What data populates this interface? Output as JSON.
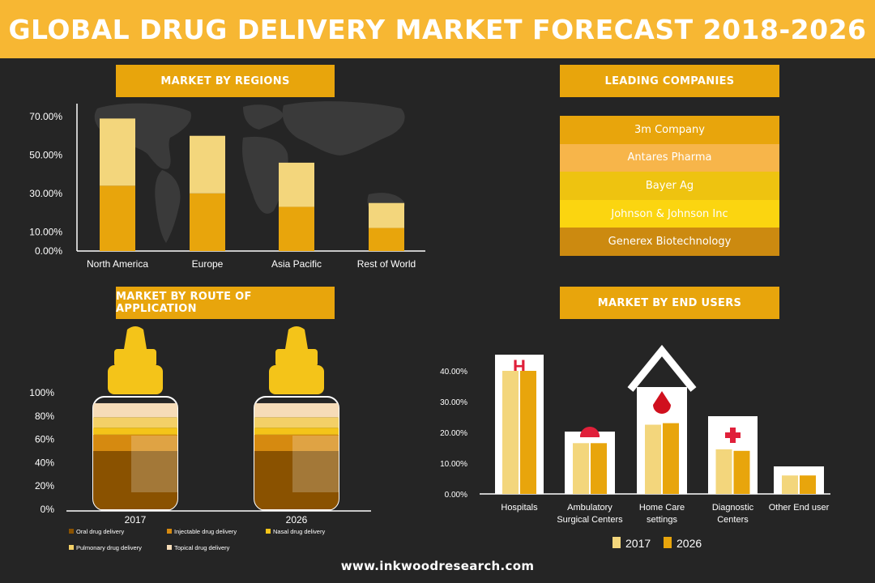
{
  "page": {
    "title": "GLOBAL DRUG DELIVERY MARKET FORECAST 2018-2026",
    "footer": "www.inkwoodresearch.com"
  },
  "sections": {
    "regions": "MARKET BY REGIONS",
    "companies": "LEADING COMPANIES",
    "route": "MARKET BY ROUTE OF APPLICATION",
    "end_users": "MARKET BY END USERS"
  },
  "companies": [
    {
      "name": "3m Company",
      "color": "#e8a50c"
    },
    {
      "name": "Antares Pharma",
      "color": "#f7b54a"
    },
    {
      "name": "Bayer Ag",
      "color": "#eec310"
    },
    {
      "name": "Johnson & Johnson Inc",
      "color": "#fbd510"
    },
    {
      "name": "Generex Biotechnology",
      "color": "#cc8a10"
    }
  ],
  "colors": {
    "accent": "#e8a50c",
    "banner": "#f7b733",
    "light": "#f3d67c",
    "dark_bg": "#252525"
  },
  "chart_data": [
    {
      "type": "bar",
      "stacked": true,
      "categories": [
        "North America",
        "Europe",
        "Asia Pacific",
        "Rest of World"
      ],
      "y_ticks": [
        "70.00%",
        "50.00%",
        "30.00%",
        "10.00%",
        "0.00%"
      ],
      "y_tick_values": [
        70,
        50,
        30,
        10,
        0
      ],
      "ylim": [
        0,
        70
      ],
      "series": [
        {
          "values": [
            34,
            30,
            23,
            12
          ],
          "color": "#e8a50c"
        },
        {
          "values": [
            35,
            30,
            23,
            13
          ],
          "color": "#f3d67c"
        }
      ],
      "grid": false,
      "background": "world-map"
    },
    {
      "type": "bar",
      "stacked": true,
      "style": "bottles",
      "categories": [
        "2017",
        "2026"
      ],
      "y_ticks": [
        "100%",
        "80%",
        "60%",
        "40%",
        "20%",
        "0%"
      ],
      "y_tick_values": [
        100,
        80,
        60,
        40,
        20,
        0
      ],
      "ylim": [
        0,
        100
      ],
      "series": [
        {
          "name": "Oral drug delivery",
          "values": [
            50,
            50
          ],
          "color": "#8a5200"
        },
        {
          "name": "Injectable drug delivery",
          "values": [
            14,
            14
          ],
          "color": "#d68a10"
        },
        {
          "name": "Nasal drug delivery",
          "values": [
            6,
            6
          ],
          "color": "#f4c419"
        },
        {
          "name": "Pulmonary drug delivery",
          "values": [
            9,
            9
          ],
          "color": "#f3d067"
        },
        {
          "name": "Topical drug delivery",
          "values": [
            12,
            12
          ],
          "color": "#f6dcb8"
        }
      ],
      "legend_position": "bottom"
    },
    {
      "type": "bar",
      "categories": [
        "Hospitals",
        "Ambulatory Surgical Centers",
        "Home Care settings",
        "Diagnostic Centers",
        "Other End user"
      ],
      "y_ticks": [
        "40.00%",
        "30.00%",
        "20.00%",
        "10.00%",
        "0.00%"
      ],
      "y_tick_values": [
        40,
        30,
        20,
        10,
        0
      ],
      "ylim": [
        0,
        40
      ],
      "series": [
        {
          "name": "2017",
          "values": [
            40,
            16.5,
            22.5,
            14.5,
            6
          ],
          "color": "#f3d67c"
        },
        {
          "name": "2026",
          "values": [
            40,
            16.5,
            23,
            14,
            6
          ],
          "color": "#e8a50c"
        }
      ],
      "legend_position": "bottom",
      "grid": false
    }
  ]
}
